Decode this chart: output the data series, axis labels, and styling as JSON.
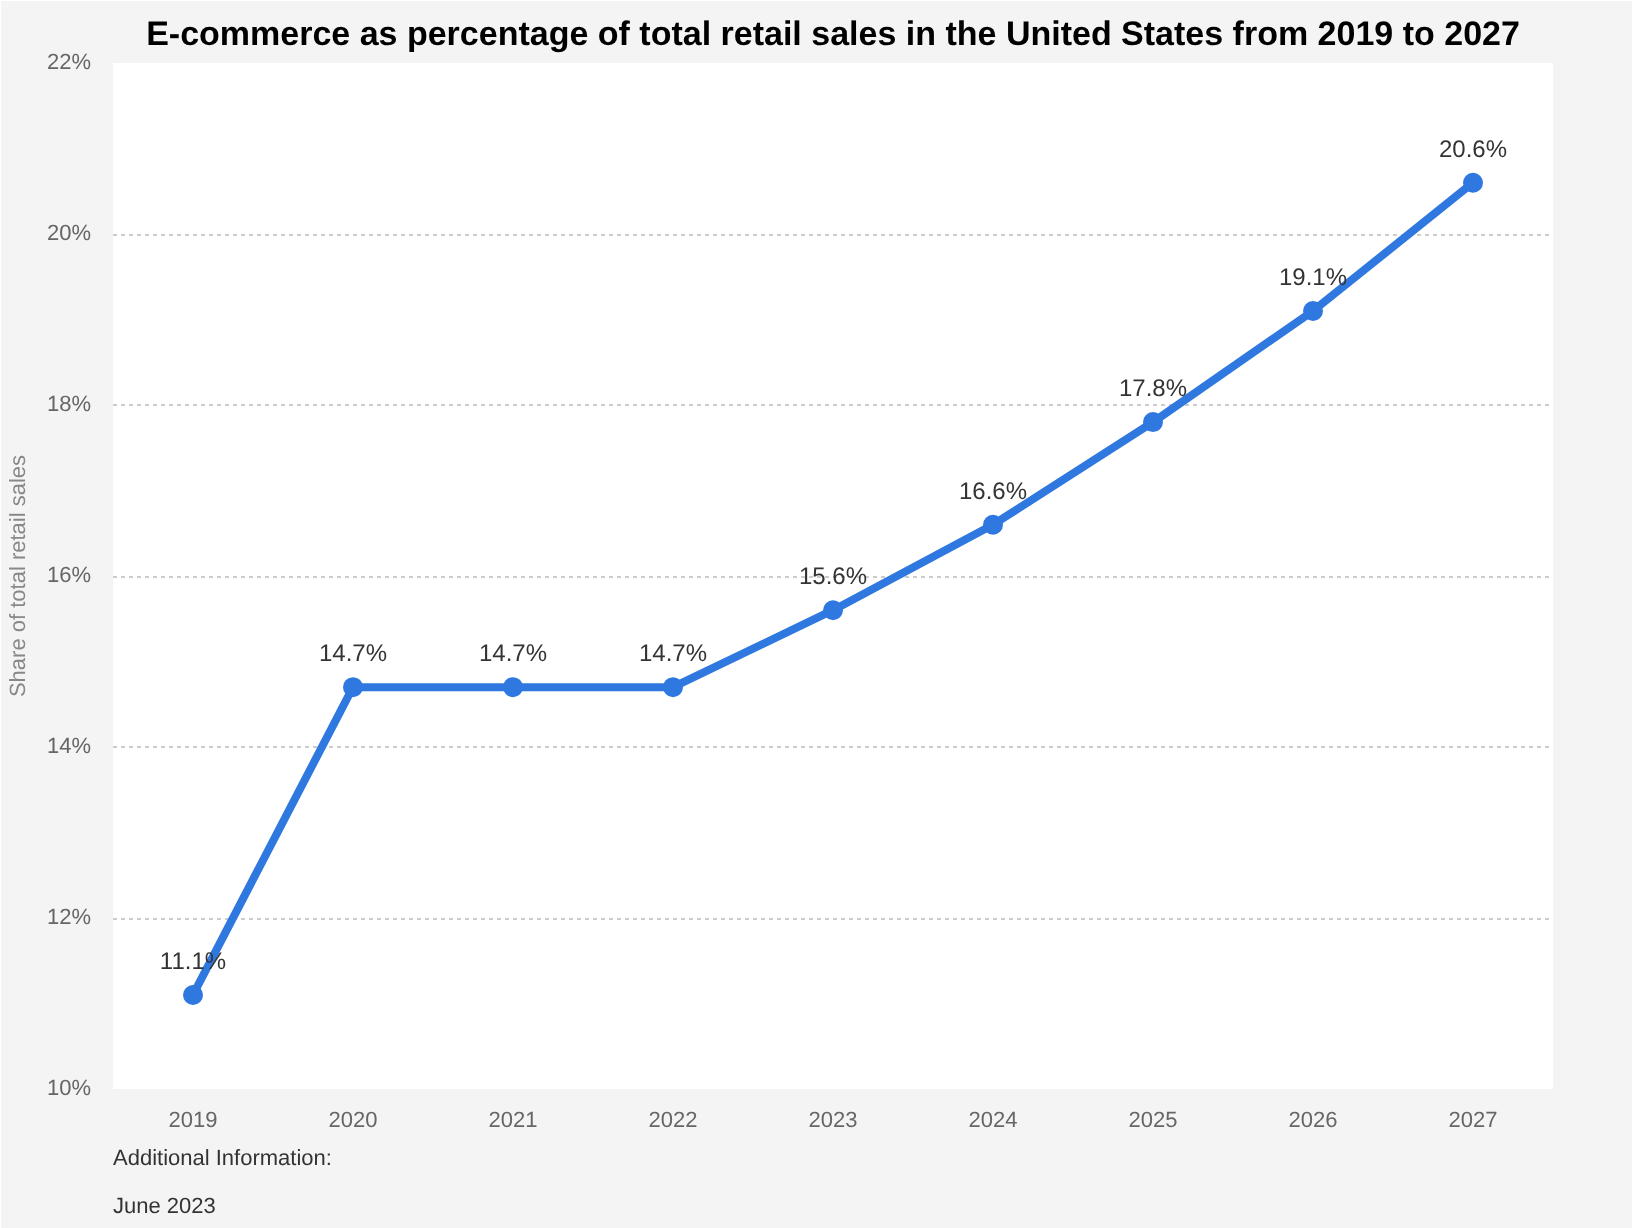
{
  "chart_data": {
    "type": "line",
    "title": "E-commerce as percentage of total retail sales in the United States from 2019 to 2027",
    "ylabel": "Share of total retail sales",
    "categories": [
      "2019",
      "2020",
      "2021",
      "2022",
      "2023",
      "2024",
      "2025",
      "2026",
      "2027"
    ],
    "series": [
      {
        "color": "#2f78e0",
        "values": [
          11.1,
          14.7,
          14.7,
          14.7,
          15.6,
          16.6,
          17.8,
          19.1,
          20.6
        ],
        "value_labels": [
          "11.1%",
          "14.7%",
          "14.7%",
          "14.7%",
          "15.6%",
          "16.6%",
          "17.8%",
          "19.1%",
          "20.6%"
        ]
      }
    ],
    "ylim": [
      10,
      22
    ],
    "yticks": [
      {
        "value": 10,
        "label": "10%"
      },
      {
        "value": 12,
        "label": "12%"
      },
      {
        "value": 14,
        "label": "14%"
      },
      {
        "value": 16,
        "label": "16%"
      },
      {
        "value": 18,
        "label": "18%"
      },
      {
        "value": 20,
        "label": "20%"
      },
      {
        "value": 22,
        "label": "22%"
      }
    ],
    "grid": "y",
    "marker": "circle",
    "line_style": "solid",
    "annotations": [
      "Additional Information:",
      "June 2023"
    ]
  }
}
